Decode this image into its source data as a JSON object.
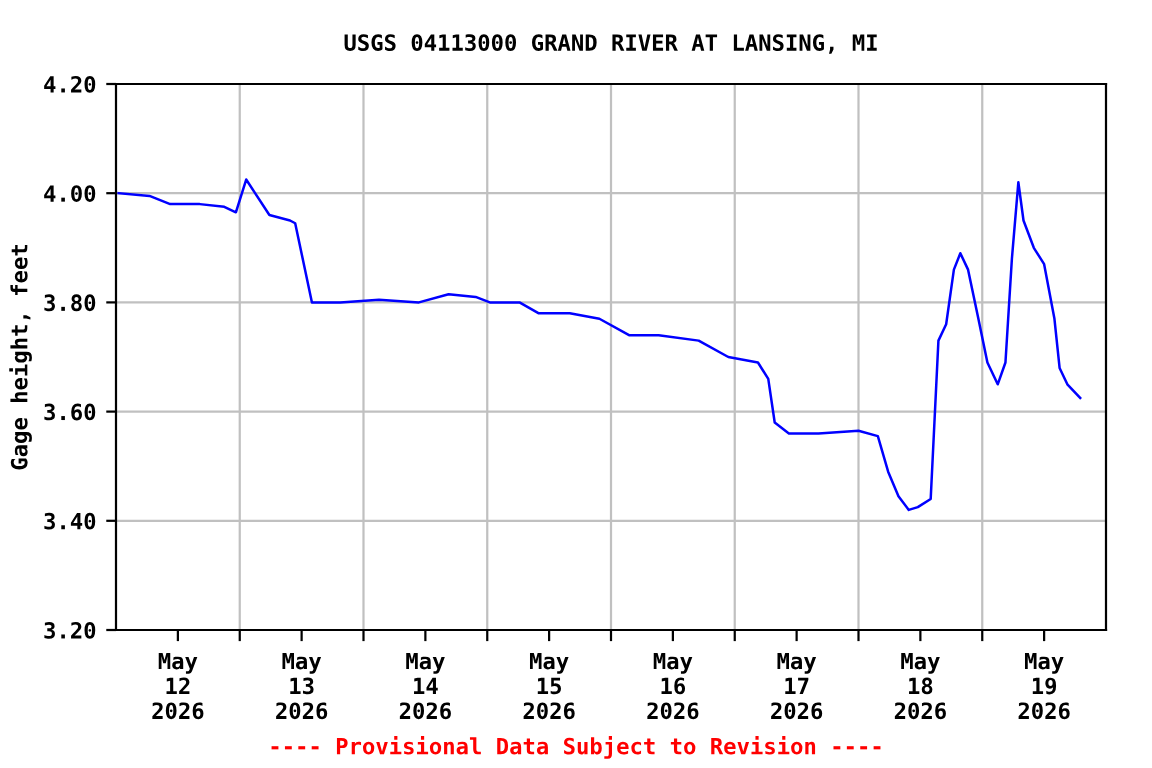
{
  "chart_data": {
    "type": "line",
    "title": "USGS 04113000 GRAND RIVER AT LANSING, MI",
    "ylabel": "Gage height, feet",
    "annotations": [
      "---- Provisional Data Subject to Revision ----"
    ],
    "x": [
      "2026-05-12T00:30",
      "2026-05-12T06:30",
      "2026-05-12T10:30",
      "2026-05-12T16:15",
      "2026-05-12T21:00",
      "2026-05-12T23:15",
      "2026-05-13T01:15",
      "2026-05-13T05:45",
      "2026-05-13T09:45",
      "2026-05-13T10:45",
      "2026-05-13T14:00",
      "2026-05-13T19:30",
      "2026-05-14T03:00",
      "2026-05-14T10:45",
      "2026-05-14T16:30",
      "2026-05-14T21:45",
      "2026-05-15T00:30",
      "2026-05-15T06:15",
      "2026-05-15T10:00",
      "2026-05-15T16:00",
      "2026-05-15T21:45",
      "2026-05-16T03:30",
      "2026-05-16T09:15",
      "2026-05-16T17:00",
      "2026-05-16T22:45",
      "2026-05-17T04:30",
      "2026-05-17T06:30",
      "2026-05-17T07:45",
      "2026-05-17T10:30",
      "2026-05-17T16:15",
      "2026-05-18T00:00",
      "2026-05-18T03:45",
      "2026-05-18T05:45",
      "2026-05-18T07:45",
      "2026-05-18T09:45",
      "2026-05-18T11:30",
      "2026-05-18T14:00",
      "2026-05-18T15:30",
      "2026-05-18T17:00",
      "2026-05-18T18:30",
      "2026-05-18T19:45",
      "2026-05-18T21:15",
      "2026-05-18T23:15",
      "2026-05-19T01:00",
      "2026-05-19T03:00",
      "2026-05-19T04:30",
      "2026-05-19T05:45",
      "2026-05-19T07:00",
      "2026-05-19T08:00",
      "2026-05-19T10:00",
      "2026-05-19T12:00",
      "2026-05-19T14:00",
      "2026-05-19T15:00",
      "2026-05-19T16:30",
      "2026-05-19T19:00"
    ],
    "series": [
      {
        "color": "#0000ff",
        "values": [
          4.0,
          3.995,
          3.98,
          3.98,
          3.975,
          3.965,
          4.025,
          3.96,
          3.95,
          3.945,
          3.8,
          3.8,
          3.805,
          3.8,
          3.815,
          3.81,
          3.8,
          3.8,
          3.78,
          3.78,
          3.77,
          3.74,
          3.74,
          3.73,
          3.7,
          3.69,
          3.66,
          3.58,
          3.56,
          3.56,
          3.565,
          3.555,
          3.49,
          3.445,
          3.42,
          3.425,
          3.44,
          3.73,
          3.76,
          3.86,
          3.89,
          3.86,
          3.77,
          3.69,
          3.65,
          3.69,
          3.88,
          4.02,
          3.95,
          3.9,
          3.87,
          3.77,
          3.68,
          3.65,
          3.625
        ]
      }
    ],
    "xlim": [
      "2026-05-12T00:00",
      "2026-05-20T00:00"
    ],
    "xticks": [
      {
        "value": "2026-05-12T12:00",
        "label": "May\n12\n2026"
      },
      {
        "value": "2026-05-13T00:00",
        "label": null
      },
      {
        "value": "2026-05-13T12:00",
        "label": "May\n13\n2026"
      },
      {
        "value": "2026-05-14T00:00",
        "label": null
      },
      {
        "value": "2026-05-14T12:00",
        "label": "May\n14\n2026"
      },
      {
        "value": "2026-05-15T00:00",
        "label": null
      },
      {
        "value": "2026-05-15T12:00",
        "label": "May\n15\n2026"
      },
      {
        "value": "2026-05-16T00:00",
        "label": null
      },
      {
        "value": "2026-05-16T12:00",
        "label": "May\n16\n2026"
      },
      {
        "value": "2026-05-17T00:00",
        "label": null
      },
      {
        "value": "2026-05-17T12:00",
        "label": "May\n17\n2026"
      },
      {
        "value": "2026-05-18T00:00",
        "label": null
      },
      {
        "value": "2026-05-18T12:00",
        "label": "May\n18\n2026"
      },
      {
        "value": "2026-05-19T00:00",
        "label": null
      },
      {
        "value": "2026-05-19T12:00",
        "label": "May\n19\n2026"
      }
    ],
    "ylim": [
      3.2,
      4.2
    ],
    "yticks": [
      {
        "value": 3.2,
        "label": "3.20"
      },
      {
        "value": 3.4,
        "label": "3.40"
      },
      {
        "value": 3.6,
        "label": "3.60"
      },
      {
        "value": 3.8,
        "label": "3.80"
      },
      {
        "value": 4.0,
        "label": "4.00"
      },
      {
        "value": 4.2,
        "label": "4.20"
      }
    ],
    "grid": true,
    "marker": "none",
    "line_style": "solid"
  }
}
